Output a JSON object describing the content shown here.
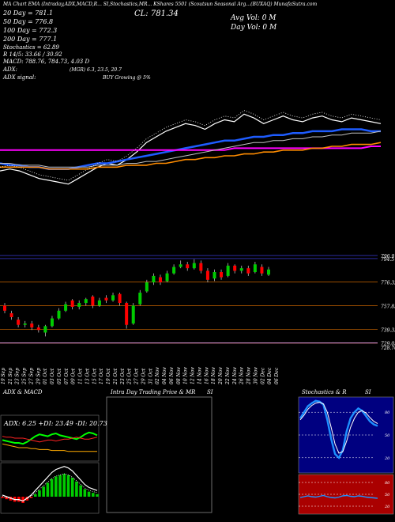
{
  "header": {
    "line1": "MA Chart EMA (Intraday,ADX,MACD,R...  SI,Stochastics,MR...  KShares 5501  (Scoutsun Seasonal Arg...(BUXAQ) MunafaSutra.com",
    "ma20": "20  Day  = 781.1",
    "ma50": "50  Day  = 776.8",
    "ma100": "100  Day  = 772.3",
    "ma200": "200  Day  = 777.1",
    "stoch": "Stochastics = 62.89",
    "rsi": "R     14/5: 33.66  / 30.92",
    "macd": "MACD: 788.76,  784.73,  4.03 D",
    "adx": "ADX:",
    "adx_val": "(MGR) 6.3,  23.5,  20.7",
    "adx_signal": "ADX  signal:",
    "signal": "BUY Growing @ 5%",
    "close": "CL: 781.34",
    "avg_vol": "Avg Vol: 0  M",
    "day_vol": "Day Vol: 0   M"
  },
  "colors": {
    "bg": "#000000",
    "bull": "#00cc00",
    "bear": "#ff0000",
    "price": "#ffffff",
    "ma_blue": "#1e5cff",
    "ma_magenta": "#ff00ff",
    "ma_orange": "#ff8c00",
    "ma_gray": "#c0c0c0",
    "ref_line": "#cc6600",
    "stoch_bg": "#000080",
    "rsi_bg": "#aa0000"
  },
  "chart_data": [
    {
      "type": "line",
      "name": "price-ma-panel",
      "x": [
        "19 Sep",
        "21 Sep",
        "23 Sep",
        "25 Sep",
        "27 Sep",
        "29 Sep",
        "01 Oct",
        "03 Oct",
        "05 Oct",
        "07 Oct",
        "09 Oct",
        "11 Oct",
        "13 Oct",
        "15 Oct",
        "17 Oct",
        "19 Oct",
        "21 Oct",
        "23 Oct",
        "25 Oct",
        "27 Oct",
        "29 Oct",
        "31 Oct",
        "02 Nov",
        "04 Nov",
        "06 Nov",
        "08 Nov",
        "10 Nov",
        "12 Nov",
        "14 Nov",
        "16 Nov",
        "18 Nov",
        "20 Nov",
        "22 Nov",
        "24 Nov",
        "26 Nov",
        "28 Nov",
        "30 Nov",
        "02 Dec",
        "04 Dec",
        "06 Dec"
      ],
      "series": [
        {
          "values": [
            760,
            761,
            760,
            758,
            756,
            755,
            754,
            753,
            756,
            759,
            762,
            764,
            763,
            766,
            770,
            775,
            778,
            781,
            783,
            785,
            784,
            782,
            785,
            787,
            786,
            790,
            788,
            785,
            787,
            789,
            787,
            786,
            788,
            789,
            787,
            786,
            788,
            787,
            786,
            785
          ]
        },
        {
          "values": [
            764,
            763,
            763,
            762,
            762,
            761,
            761,
            761,
            762,
            763,
            764,
            764,
            765,
            766,
            767,
            768,
            769,
            770,
            771,
            772,
            773,
            774,
            775,
            776,
            776,
            777,
            778,
            778,
            779,
            779,
            780,
            780,
            781,
            781,
            781,
            782,
            782,
            782,
            781,
            781
          ]
        },
        {
          "values": [
            771,
            771,
            771,
            771,
            771,
            771,
            771,
            771,
            771,
            771,
            771,
            771,
            771,
            771,
            771,
            771,
            771,
            771,
            771,
            771,
            771,
            771,
            771,
            771,
            772,
            772,
            772,
            772,
            772,
            772,
            772,
            772,
            772,
            772,
            772,
            772,
            772,
            772,
            773,
            773
          ]
        },
        {
          "values": [
            762,
            762,
            762,
            762,
            762,
            761,
            761,
            761,
            761,
            761,
            762,
            762,
            762,
            763,
            763,
            763,
            764,
            764,
            765,
            766,
            766,
            767,
            767,
            768,
            768,
            769,
            769,
            770,
            770,
            771,
            771,
            771,
            772,
            772,
            773,
            773,
            774,
            774,
            774,
            775
          ]
        },
        {
          "values": [
            764,
            764,
            763,
            763,
            763,
            762,
            762,
            762,
            762,
            762,
            763,
            763,
            763,
            764,
            764,
            765,
            765,
            766,
            767,
            768,
            769,
            770,
            771,
            772,
            773,
            774,
            775,
            775,
            776,
            776,
            777,
            777,
            778,
            778,
            779,
            779,
            780,
            780,
            780,
            781
          ]
        }
      ]
    },
    {
      "type": "candlestick",
      "name": "candles-panel",
      "yticks": [
        "796.9",
        "794.5",
        "776.32",
        "757.83",
        "739.33",
        "729.05",
        "728.76"
      ],
      "candles": [
        {
          "o": 758,
          "c": 754,
          "h": 760,
          "l": 752
        },
        {
          "o": 752,
          "c": 749,
          "h": 754,
          "l": 747
        },
        {
          "o": 747,
          "c": 743,
          "h": 749,
          "l": 741
        },
        {
          "o": 743,
          "c": 744,
          "h": 746,
          "l": 741
        },
        {
          "o": 744,
          "c": 741,
          "h": 746,
          "l": 739
        },
        {
          "o": 741,
          "c": 739,
          "h": 743,
          "l": 737
        },
        {
          "o": 737,
          "c": 742,
          "h": 743,
          "l": 734
        },
        {
          "o": 742,
          "c": 748,
          "h": 750,
          "l": 741
        },
        {
          "o": 748,
          "c": 754,
          "h": 756,
          "l": 747
        },
        {
          "o": 754,
          "c": 759,
          "h": 761,
          "l": 753
        },
        {
          "o": 762,
          "c": 757,
          "h": 763,
          "l": 755
        },
        {
          "o": 757,
          "c": 760,
          "h": 762,
          "l": 755
        },
        {
          "o": 760,
          "c": 763,
          "h": 764,
          "l": 758
        },
        {
          "o": 765,
          "c": 758,
          "h": 766,
          "l": 756
        },
        {
          "o": 758,
          "c": 762,
          "h": 764,
          "l": 757
        },
        {
          "o": 764,
          "c": 762,
          "h": 766,
          "l": 760
        },
        {
          "o": 762,
          "c": 766,
          "h": 768,
          "l": 761
        },
        {
          "o": 767,
          "c": 760,
          "h": 768,
          "l": 758
        },
        {
          "o": 760,
          "c": 743,
          "h": 761,
          "l": 740
        },
        {
          "o": 744,
          "c": 758,
          "h": 760,
          "l": 743
        },
        {
          "o": 759,
          "c": 768,
          "h": 770,
          "l": 758
        },
        {
          "o": 769,
          "c": 776,
          "h": 778,
          "l": 768
        },
        {
          "o": 776,
          "c": 781,
          "h": 783,
          "l": 774
        },
        {
          "o": 780,
          "c": 776,
          "h": 782,
          "l": 774
        },
        {
          "o": 777,
          "c": 783,
          "h": 785,
          "l": 776
        },
        {
          "o": 783,
          "c": 788,
          "h": 790,
          "l": 782
        },
        {
          "o": 788,
          "c": 790,
          "h": 793,
          "l": 787
        },
        {
          "o": 790,
          "c": 787,
          "h": 792,
          "l": 785
        },
        {
          "o": 787,
          "c": 791,
          "h": 794,
          "l": 786
        },
        {
          "o": 791,
          "c": 785,
          "h": 793,
          "l": 783
        },
        {
          "o": 785,
          "c": 778,
          "h": 787,
          "l": 776
        },
        {
          "o": 779,
          "c": 784,
          "h": 786,
          "l": 777
        },
        {
          "o": 784,
          "c": 780,
          "h": 786,
          "l": 778
        },
        {
          "o": 781,
          "c": 789,
          "h": 791,
          "l": 780
        },
        {
          "o": 789,
          "c": 785,
          "h": 790,
          "l": 783
        },
        {
          "o": 785,
          "c": 787,
          "h": 789,
          "l": 783
        },
        {
          "o": 787,
          "c": 783,
          "h": 789,
          "l": 781
        },
        {
          "o": 784,
          "c": 790,
          "h": 792,
          "l": 783
        },
        {
          "o": 788,
          "c": 783,
          "h": 790,
          "l": 781
        },
        {
          "o": 782,
          "c": 786,
          "h": 788,
          "l": 781
        }
      ],
      "ylim": [
        725,
        800
      ]
    },
    {
      "type": "bar",
      "name": "adx-macd-panel",
      "title": "ADX  & MACD",
      "label": "ADX: 6.25  +DI: 23.49  -DI: 20.73",
      "series": [
        {
          "values": [
            18,
            17,
            16,
            15,
            15,
            14,
            16,
            19,
            22,
            24,
            23,
            22,
            24,
            25,
            23,
            22,
            21,
            20,
            19,
            21,
            24,
            26,
            25,
            23
          ]
        },
        {
          "values": [
            22,
            21,
            21,
            20,
            20,
            20,
            19,
            18,
            17,
            16,
            17,
            18,
            18,
            17,
            18,
            19,
            19,
            20,
            21,
            20,
            19,
            19,
            20,
            21
          ]
        },
        {
          "values": [
            14,
            13,
            12,
            11,
            10,
            10,
            10,
            9,
            9,
            8,
            8,
            8,
            7,
            7,
            7,
            7,
            6,
            6,
            6,
            6,
            6,
            6,
            6,
            6
          ]
        },
        {
          "values": [
            -1,
            -2,
            -3,
            -4,
            -4,
            -5,
            -3,
            -1,
            2,
            5,
            8,
            11,
            14,
            16,
            17,
            18,
            17,
            15,
            12,
            9,
            6,
            4,
            3,
            2
          ]
        }
      ]
    },
    {
      "type": "line",
      "name": "intraday-panel",
      "title": "Intra  Day  Trading  Price  &  MR",
      "title2": "SI"
    },
    {
      "type": "line",
      "name": "stoch-rsi-panel",
      "title": "Stochastics & R",
      "title2": "SI",
      "stoch_ticks": [
        "80",
        "50",
        "20"
      ],
      "rsi_ticks": [
        "80",
        "50",
        "20"
      ],
      "series": [
        {
          "values": [
            72,
            80,
            88,
            92,
            95,
            94,
            90,
            70,
            45,
            25,
            20,
            30,
            55,
            72,
            80,
            85,
            82,
            75,
            68,
            64,
            62
          ]
        },
        {
          "values": [
            70,
            76,
            84,
            89,
            92,
            93,
            91,
            80,
            60,
            38,
            26,
            28,
            42,
            60,
            72,
            80,
            82,
            79,
            73,
            68,
            65
          ]
        },
        {
          "values": [
            42,
            44,
            46,
            44,
            43,
            45,
            47,
            44,
            42,
            41,
            43,
            46,
            47,
            45,
            44,
            46,
            45,
            43,
            42,
            41,
            40
          ]
        }
      ]
    }
  ]
}
